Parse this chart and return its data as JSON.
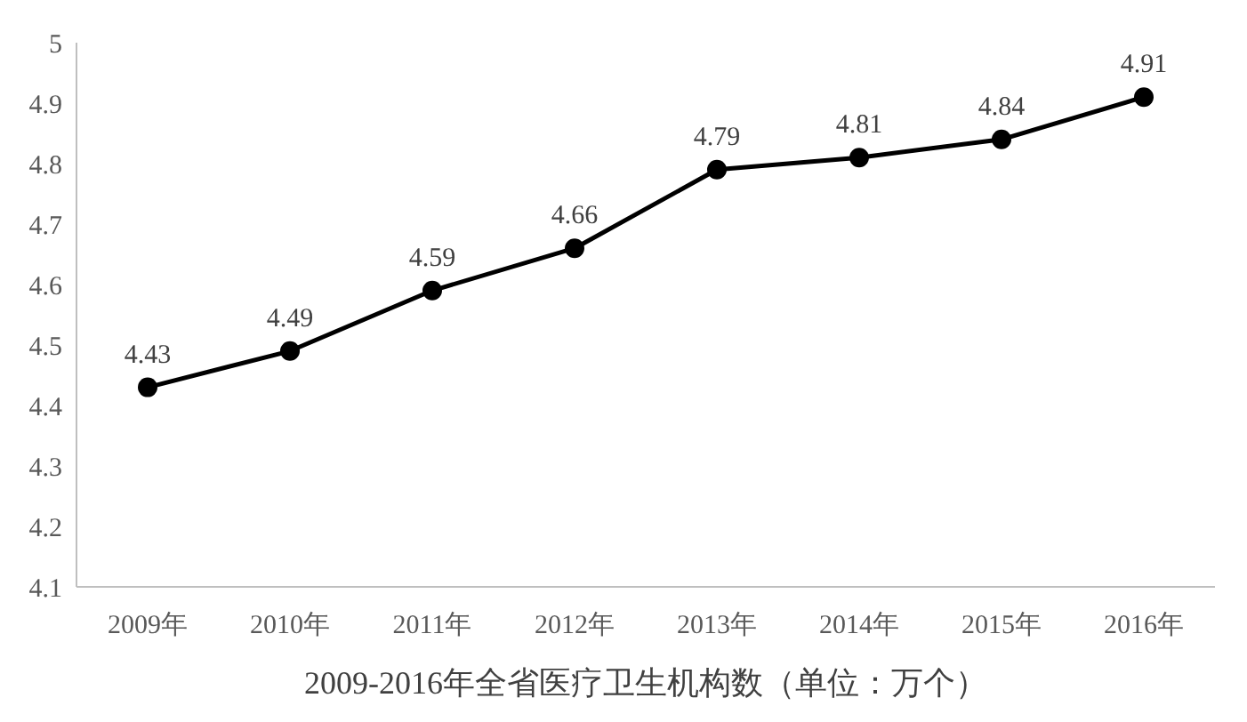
{
  "chart_data": {
    "type": "line",
    "xlabel": "2009-2016年全省医疗卫生机构数（单位：万个）",
    "categories": [
      "2009年",
      "2010年",
      "2011年",
      "2012年",
      "2013年",
      "2014年",
      "2015年",
      "2016年"
    ],
    "series": [
      {
        "color": "#000000",
        "values": [
          4.43,
          4.49,
          4.59,
          4.66,
          4.79,
          4.81,
          4.84,
          4.91
        ]
      }
    ],
    "ylim": [
      4.1,
      5
    ],
    "yticks": [
      4.1,
      4.2,
      4.3,
      4.4,
      4.5,
      4.6,
      4.7,
      4.8,
      4.9,
      5
    ],
    "data_labels": true,
    "marker": "circle",
    "line_style": "solid"
  }
}
